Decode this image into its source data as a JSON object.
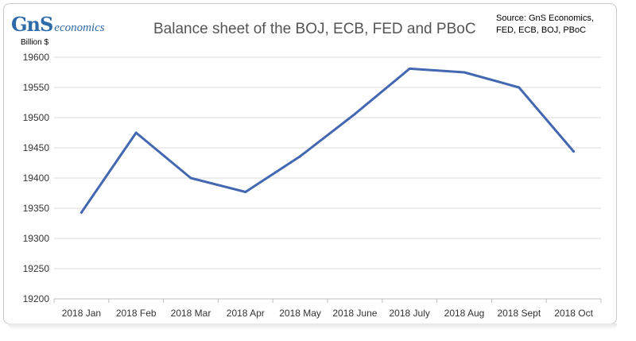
{
  "logo": {
    "mark": "GnS",
    "text": "economics"
  },
  "chart_data": {
    "type": "line",
    "title": "Balance sheet of the BOJ, ECB, FED and PBoC",
    "source_line1": "Source: GnS Economics,",
    "source_line2": "FED, ECB, BOJ, PBoC",
    "ylabel": "Billion $",
    "xlabel": "",
    "categories": [
      "2018 Jan",
      "2018 Feb",
      "2018 Mar",
      "2018 Apr",
      "2018 May",
      "2018 June",
      "2018 July",
      "2018 Aug",
      "2018 Sept",
      "2018 Oct"
    ],
    "series": [
      {
        "values": [
          19343,
          19475,
          19400,
          19377,
          19436,
          19506,
          19581,
          19575,
          19550,
          19444
        ]
      }
    ],
    "ylim": [
      19200,
      19600
    ],
    "yticks": [
      "19200",
      "19250",
      "19300",
      "19350",
      "19400",
      "19450",
      "19500",
      "19550",
      "19600"
    ],
    "grid": true,
    "legend": "none",
    "line_color": "#4367b0"
  }
}
